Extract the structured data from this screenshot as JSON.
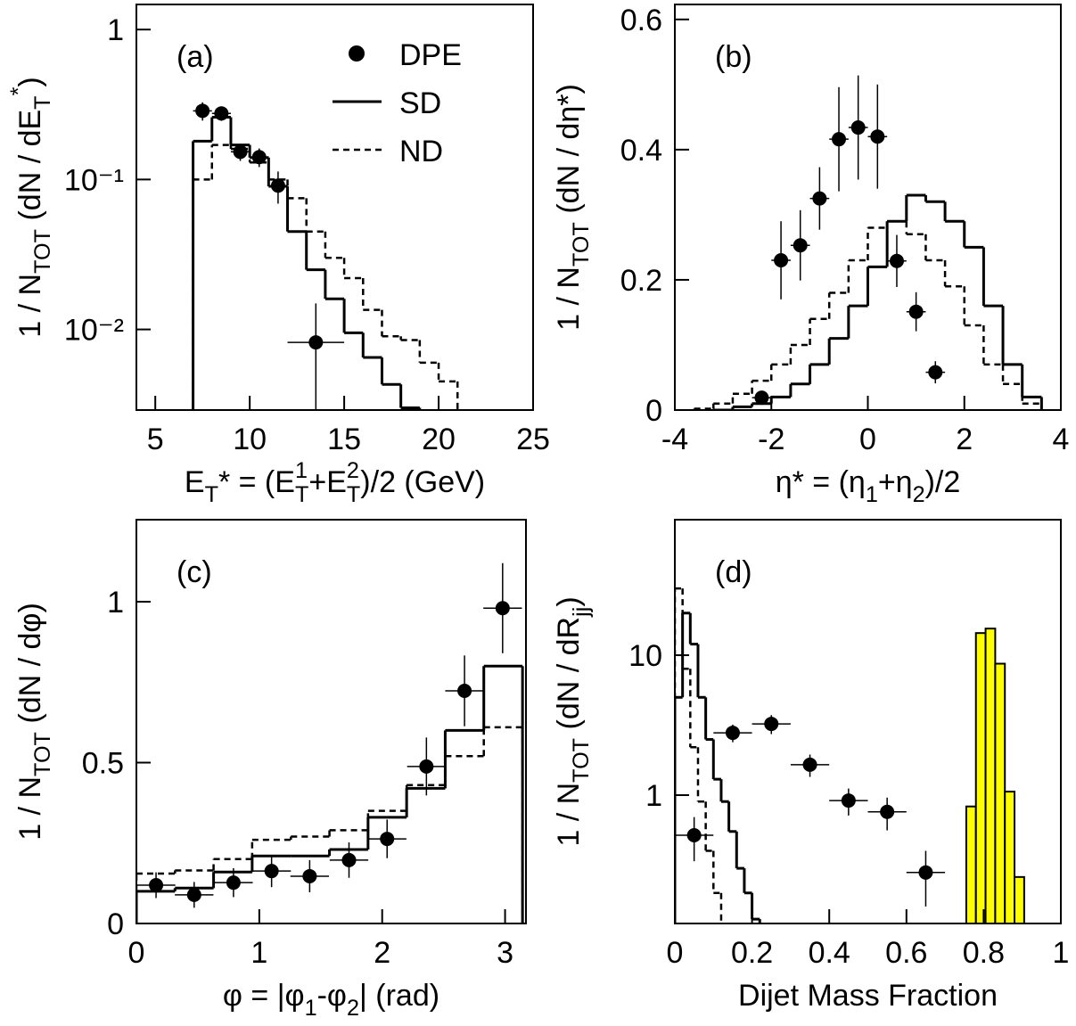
{
  "chart_data": [
    {
      "type": "histogram",
      "panel_label": "(a)",
      "log_y": true,
      "legend": true,
      "xlim": [
        4,
        25
      ],
      "xticks": [
        5,
        10,
        15,
        20,
        25
      ],
      "ylim": [
        0.0029,
        1.47
      ],
      "yticks": [
        {
          "value": 1,
          "label": "1"
        },
        {
          "value": 0.1,
          "label": "10⁻¹"
        },
        {
          "value": 0.01,
          "label": "10⁻²"
        }
      ],
      "xlabel": [
        "E",
        {
          "sub": "T"
        },
        "* = (E",
        {
          "sup": "1"
        },
        {
          "sub": "T"
        },
        "+E",
        {
          "sup": "2"
        },
        {
          "sub": "T"
        },
        ")/2  (GeV)"
      ],
      "ylabel": [
        "1 / N",
        {
          "sub": "TOT"
        },
        " (dN / dE",
        {
          "sub": "T"
        },
        {
          "sup": "*"
        },
        ")"
      ],
      "series": [
        {
          "name": "DPE",
          "style": "points",
          "color": "#000000",
          "x": [
            7.5,
            8.5,
            9.5,
            10.5,
            11.5,
            13.5
          ],
          "values": [
            0.287,
            0.276,
            0.153,
            0.141,
            0.091,
            0.0082
          ],
          "xerr": [
            0.5,
            0.5,
            0.5,
            0.5,
            0.5,
            1.5
          ],
          "yerr": [
            0.04,
            0.03,
            0.02,
            0.02,
            0.022,
            0.0067
          ]
        },
        {
          "name": "SD",
          "style": "solid",
          "color": "#000000",
          "bins": [
            7,
            8,
            9,
            10,
            11,
            12,
            13,
            14,
            15,
            16,
            17,
            18,
            19
          ],
          "values": [
            0.18,
            0.26,
            0.17,
            0.14,
            0.09,
            0.045,
            0.025,
            0.016,
            0.0095,
            0.0065,
            0.0043,
            0.003
          ]
        },
        {
          "name": "ND",
          "style": "dashed",
          "color": "#000000",
          "bins": [
            7,
            8,
            9,
            10,
            11,
            12,
            13,
            14,
            15,
            16,
            17,
            18,
            19,
            20,
            21
          ],
          "values": [
            0.1,
            0.17,
            0.16,
            0.13,
            0.1,
            0.075,
            0.045,
            0.03,
            0.022,
            0.0135,
            0.009,
            0.0085,
            0.006,
            0.0045
          ]
        }
      ]
    },
    {
      "type": "histogram",
      "panel_label": "(b)",
      "log_y": false,
      "xlim": [
        -4,
        4
      ],
      "xticks": [
        -4,
        -2,
        0,
        2,
        4
      ],
      "ylim": [
        0,
        0.623
      ],
      "yticks": [
        0,
        0.2,
        0.4,
        0.6
      ],
      "xlabel": [
        "η* = (η",
        {
          "sub": "1"
        },
        "+η",
        {
          "sub": "2"
        },
        ")/2"
      ],
      "ylabel": [
        "1 / N",
        {
          "sub": "TOT"
        },
        " (dN / dη*)"
      ],
      "series": [
        {
          "style": "points",
          "color": "#000000",
          "x": [
            -2.2,
            -1.8,
            -1.4,
            -1.0,
            -0.6,
            -0.2,
            0.2,
            0.6,
            1.0,
            1.4
          ],
          "values": [
            0.019,
            0.23,
            0.253,
            0.325,
            0.416,
            0.434,
            0.42,
            0.229,
            0.151,
            0.058
          ],
          "xerr": [
            0.2,
            0.2,
            0.2,
            0.2,
            0.2,
            0.2,
            0.2,
            0.2,
            0.2,
            0.2
          ],
          "yerr": [
            0.007,
            0.06,
            0.054,
            0.048,
            0.08,
            0.08,
            0.08,
            0.04,
            0.03,
            0.017
          ]
        },
        {
          "style": "solid",
          "color": "#000000",
          "bins": [
            -3.2,
            -2.8,
            -2.4,
            -2.0,
            -1.6,
            -1.2,
            -0.8,
            -0.4,
            0.0,
            0.4,
            0.8,
            1.2,
            1.6,
            2.0,
            2.4,
            2.8,
            3.2,
            3.6
          ],
          "values": [
            0.0,
            0.005,
            0.01,
            0.02,
            0.04,
            0.07,
            0.11,
            0.16,
            0.22,
            0.29,
            0.33,
            0.32,
            0.29,
            0.25,
            0.16,
            0.07,
            0.02
          ]
        },
        {
          "style": "dashed",
          "color": "#000000",
          "bins": [
            -3.6,
            -3.2,
            -2.8,
            -2.4,
            -2.0,
            -1.6,
            -1.2,
            -0.8,
            -0.4,
            0.0,
            0.4,
            0.8,
            1.2,
            1.6,
            2.0,
            2.4,
            2.8,
            3.2,
            3.6
          ],
          "values": [
            0.002,
            0.01,
            0.025,
            0.045,
            0.07,
            0.1,
            0.14,
            0.18,
            0.23,
            0.28,
            0.29,
            0.27,
            0.23,
            0.19,
            0.13,
            0.07,
            0.04,
            0.01
          ]
        }
      ]
    },
    {
      "type": "histogram",
      "panel_label": "(c)",
      "log_y": false,
      "xlim": [
        0,
        3.17
      ],
      "xticks": [
        0,
        1,
        2,
        3
      ],
      "ylim": [
        0,
        1.255
      ],
      "yticks": [
        0,
        0.5,
        1
      ],
      "xlabel": [
        "φ = |φ",
        {
          "sub": "1"
        },
        "-φ",
        {
          "sub": "2"
        },
        "|  (rad)"
      ],
      "ylabel": [
        "1 / N",
        {
          "sub": "TOT"
        },
        " (dN / dφ)"
      ],
      "series": [
        {
          "style": "points",
          "color": "#000000",
          "x": [
            0.16,
            0.47,
            0.79,
            1.1,
            1.41,
            1.73,
            2.04,
            2.36,
            2.67,
            2.98
          ],
          "values": [
            0.119,
            0.089,
            0.127,
            0.163,
            0.147,
            0.197,
            0.263,
            0.488,
            0.723,
            0.98
          ],
          "xerr": [
            0.157,
            0.157,
            0.157,
            0.157,
            0.157,
            0.157,
            0.157,
            0.157,
            0.157,
            0.157
          ],
          "yerr": [
            0.04,
            0.04,
            0.045,
            0.05,
            0.05,
            0.055,
            0.06,
            0.09,
            0.11,
            0.14
          ]
        },
        {
          "style": "solid",
          "color": "#000000",
          "bins": [
            0,
            0.314,
            0.628,
            0.942,
            1.257,
            1.571,
            1.885,
            2.199,
            2.513,
            2.827,
            3.142
          ],
          "values": [
            0.1,
            0.11,
            0.16,
            0.21,
            0.21,
            0.23,
            0.33,
            0.42,
            0.6,
            0.8
          ]
        },
        {
          "style": "dashed",
          "color": "#000000",
          "bins": [
            0,
            0.314,
            0.628,
            0.942,
            1.257,
            1.571,
            1.885,
            2.199,
            2.513,
            2.827,
            3.142
          ],
          "values": [
            0.155,
            0.165,
            0.2,
            0.26,
            0.27,
            0.29,
            0.35,
            0.43,
            0.52,
            0.61
          ]
        }
      ]
    },
    {
      "type": "histogram",
      "panel_label": "(d)",
      "log_y": true,
      "xlim": [
        0,
        1
      ],
      "xticks": [
        0,
        0.2,
        0.4,
        0.6,
        0.8,
        1
      ],
      "ylim": [
        0.121,
        93
      ],
      "yticks": [
        1,
        10
      ],
      "xlabel": [
        "Dijet Mass Fraction"
      ],
      "ylabel": [
        "1 / N",
        {
          "sub": "TOT"
        },
        " (dN / dR",
        {
          "sub": "jj"
        },
        ")"
      ],
      "series": [
        {
          "style": "points",
          "color": "#000000",
          "x": [
            0.05,
            0.15,
            0.25,
            0.35,
            0.45,
            0.55,
            0.65
          ],
          "values": [
            0.517,
            2.79,
            3.23,
            1.65,
            0.915,
            0.76,
            0.28
          ],
          "xerr": [
            0.05,
            0.05,
            0.05,
            0.05,
            0.05,
            0.05,
            0.05
          ],
          "yerr": [
            0.18,
            0.4,
            0.5,
            0.3,
            0.2,
            0.2,
            0.12
          ]
        },
        {
          "style": "solid",
          "color": "#000000",
          "bins": [
            0,
            0.02,
            0.04,
            0.06,
            0.08,
            0.1,
            0.12,
            0.14,
            0.16,
            0.18,
            0.2,
            0.22
          ],
          "values": [
            5,
            20,
            12,
            5,
            2.5,
            1.3,
            0.9,
            0.55,
            0.3,
            0.2,
            0.13
          ]
        },
        {
          "style": "dashed",
          "color": "#000000",
          "bins": [
            0,
            0.02,
            0.04,
            0.06,
            0.08,
            0.1,
            0.12,
            0.14
          ],
          "values": [
            30,
            8,
            2.2,
            0.9,
            0.4,
            0.2,
            0.12
          ]
        },
        {
          "style": "filled",
          "color": "#ffff00",
          "bins": [
            0.755,
            0.78,
            0.805,
            0.83,
            0.855,
            0.88,
            0.905
          ],
          "values": [
            0.83,
            14.4,
            15.5,
            8.7,
            1.06,
            0.26
          ]
        }
      ]
    }
  ]
}
